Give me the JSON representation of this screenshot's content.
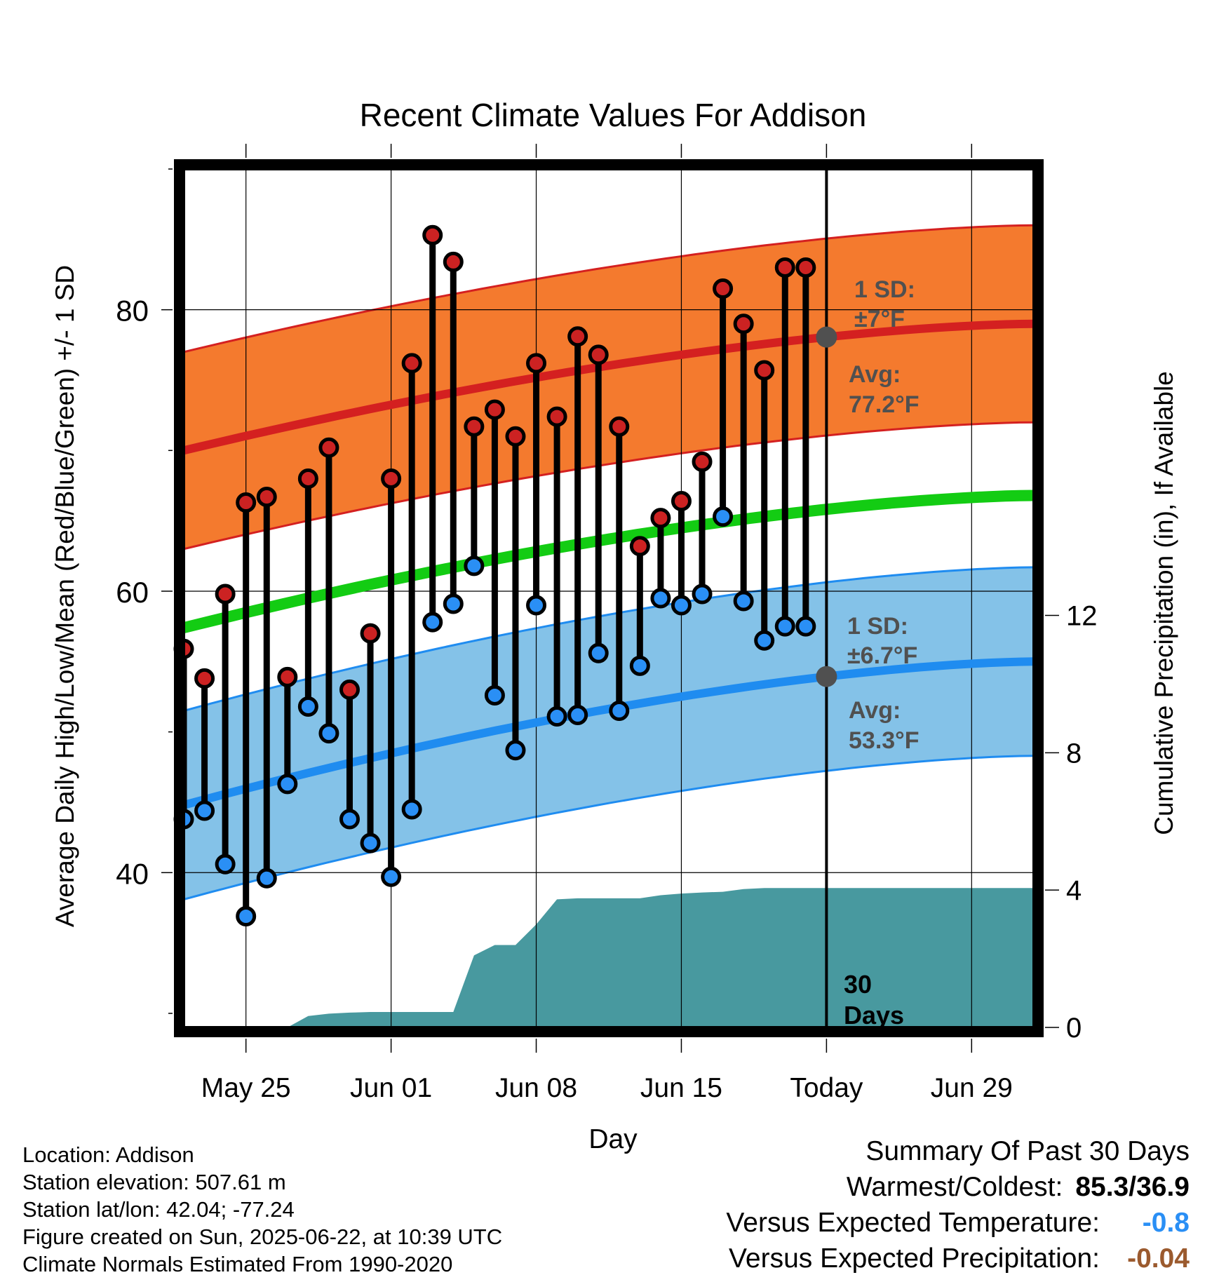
{
  "chart_data": {
    "type": "line",
    "title": "Recent Climate Values For Addison",
    "xlabel": "Day",
    "ylabel": "Average Daily High/Low/Mean (Red/Blue/Green) +/- 1 SD",
    "ylabel_right": "Cumulative Precipitation (in), If Available",
    "xlim": [
      "2025-05-22",
      "2025-07-02"
    ],
    "ylim": [
      29,
      90
    ],
    "ylim_right": [
      0,
      25
    ],
    "x_ticks": [
      "May 25",
      "Jun 01",
      "Jun 08",
      "Jun 15",
      "Today",
      "Jun 29"
    ],
    "x_tick_dates": [
      "2025-05-25",
      "2025-06-01",
      "2025-06-08",
      "2025-06-15",
      "2025-06-22",
      "2025-06-29"
    ],
    "y_ticks": [
      40,
      60,
      80
    ],
    "y_ticks_right": [
      0,
      4,
      8,
      12
    ],
    "grid": true,
    "today_date": "2025-06-22",
    "days": [
      "2025-05-22",
      "2025-05-23",
      "2025-05-24",
      "2025-05-25",
      "2025-05-26",
      "2025-05-27",
      "2025-05-28",
      "2025-05-29",
      "2025-05-30",
      "2025-05-31",
      "2025-06-01",
      "2025-06-02",
      "2025-06-03",
      "2025-06-04",
      "2025-06-05",
      "2025-06-06",
      "2025-06-07",
      "2025-06-08",
      "2025-06-09",
      "2025-06-10",
      "2025-06-11",
      "2025-06-12",
      "2025-06-13",
      "2025-06-14",
      "2025-06-15",
      "2025-06-16",
      "2025-06-17",
      "2025-06-18",
      "2025-06-19",
      "2025-06-20",
      "2025-06-21"
    ],
    "daily_high": [
      55.9,
      53.8,
      59.8,
      66.3,
      66.7,
      53.9,
      68.0,
      70.2,
      53.0,
      57.0,
      68.0,
      76.2,
      85.3,
      83.4,
      71.7,
      72.9,
      71.0,
      76.2,
      72.4,
      78.1,
      76.8,
      71.7,
      63.2,
      65.2,
      66.4,
      69.2,
      81.5,
      79.0,
      75.7,
      83.0,
      83.0
    ],
    "daily_low": [
      43.8,
      44.4,
      40.6,
      36.9,
      39.6,
      46.3,
      51.8,
      49.9,
      43.8,
      42.1,
      39.7,
      44.5,
      57.8,
      59.1,
      61.8,
      52.6,
      48.7,
      59.0,
      51.1,
      51.2,
      55.6,
      51.5,
      54.7,
      59.5,
      59.0,
      59.8,
      65.3,
      59.3,
      56.5,
      57.5,
      57.5
    ],
    "normal_high": {
      "start": 70.0,
      "end": 79.0
    },
    "normal_high_sd": 7,
    "normal_low": {
      "start": 44.8,
      "end": 55.0
    },
    "normal_low_sd": 6.7,
    "normal_mean": {
      "start": 57.4,
      "end": 66.8
    },
    "precip_cumulative": {
      "days": [
        "2025-05-22",
        "2025-05-27",
        "2025-05-28",
        "2025-05-29",
        "2025-05-30",
        "2025-05-31",
        "2025-06-01",
        "2025-06-02",
        "2025-06-03",
        "2025-06-04",
        "2025-06-05",
        "2025-06-06",
        "2025-06-07",
        "2025-06-08",
        "2025-06-09",
        "2025-06-10",
        "2025-06-11",
        "2025-06-12",
        "2025-06-13",
        "2025-06-14",
        "2025-06-15",
        "2025-06-16",
        "2025-06-17",
        "2025-06-18",
        "2025-06-19",
        "2025-06-20",
        "2025-06-21",
        "2025-07-02"
      ],
      "values": [
        0,
        0,
        0.33,
        0.4,
        0.43,
        0.45,
        0.45,
        0.45,
        0.45,
        0.45,
        2.1,
        2.4,
        2.4,
        3.0,
        3.73,
        3.76,
        3.76,
        3.76,
        3.76,
        3.85,
        3.9,
        3.93,
        3.95,
        4.03,
        4.06,
        4.06,
        4.06,
        4.06
      ]
    },
    "colors": {
      "high_band": "#f47a2e",
      "high_band_edge": "#d42020",
      "high_avg": "#d42020",
      "low_band": "#84c2e8",
      "low_band_edge": "#1f8cf0",
      "low_avg": "#1f8cf0",
      "mean_line": "#13cc13",
      "precip": "#48999f",
      "high_marker": "#cc2222",
      "low_marker": "#2a8ff5",
      "annotation": "#505050"
    },
    "annotations": {
      "high_sd_title": "1 SD:",
      "high_sd_value": "±7°F",
      "high_avg_title": "Avg:",
      "high_avg_value": "77.2°F",
      "low_sd_title": "1 SD:",
      "low_sd_value": "±6.7°F",
      "low_avg_title": "Avg:",
      "low_avg_value": "53.3°F",
      "days_count": "30",
      "days_label": "Days"
    }
  },
  "info": {
    "location": "Location: Addison",
    "elevation": "Station elevation: 507.61 m",
    "latlon": "Station lat/lon: 42.04; -77.24",
    "created": "Figure created on Sun, 2025-06-22, at 10:39 UTC",
    "normals": "Climate Normals Estimated From 1990-2020"
  },
  "summary": {
    "title": "Summary Of Past 30 Days",
    "warm_cold_label": "Warmest/Coldest:",
    "warm_cold_value": "85.3/36.9",
    "temp_label": "Versus Expected Temperature:",
    "temp_value": "-0.8",
    "temp_color": "#2a8ff5",
    "precip_label": "Versus Expected Precipitation:",
    "precip_value": "-0.04",
    "precip_color": "#9b5a2e"
  }
}
